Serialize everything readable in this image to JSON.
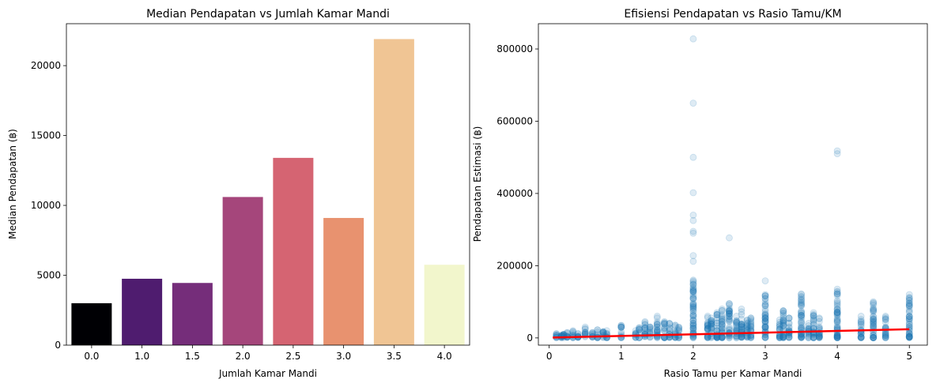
{
  "chart_data": [
    {
      "type": "bar",
      "title": "Median Pendapatan vs Jumlah Kamar Mandi",
      "xlabel": "Jumlah Kamar Mandi",
      "ylabel": "Median Pendapatan (฿)",
      "categories": [
        "0.0",
        "1.0",
        "1.5",
        "2.0",
        "2.5",
        "3.0",
        "3.5",
        "4.0"
      ],
      "values": [
        3000,
        4750,
        4450,
        10600,
        13400,
        9100,
        21900,
        5750
      ],
      "colors": [
        "#000004",
        "#4f1c6f",
        "#752d7a",
        "#a5467b",
        "#d56472",
        "#e8926f",
        "#f0c594",
        "#f2f6cc"
      ],
      "ylim": [
        0,
        23000
      ],
      "yticks": [
        0,
        5000,
        10000,
        15000,
        20000
      ],
      "grid": false
    },
    {
      "type": "scatter",
      "title": "Efisiensi Pendapatan vs Rasio Tamu/KM",
      "xlabel": "Rasio Tamu per Kamar Mandi",
      "ylabel": "Pendapatan Estimasi (฿)",
      "xlim": [
        -0.15,
        5.25
      ],
      "ylim": [
        -20000,
        870000
      ],
      "xticks": [
        0,
        1,
        2,
        3,
        4,
        5
      ],
      "yticks": [
        0,
        200000,
        400000,
        600000,
        800000
      ],
      "point_color": "#1f77b4",
      "point_alpha": 0.15,
      "columns": [
        {
          "x": 0.1,
          "max": 12000
        },
        {
          "x": 0.17,
          "max": 8000
        },
        {
          "x": 0.2,
          "max": 10000
        },
        {
          "x": 0.25,
          "max": 15000
        },
        {
          "x": 0.33,
          "max": 20000
        },
        {
          "x": 0.4,
          "max": 12000
        },
        {
          "x": 0.5,
          "max": 30000
        },
        {
          "x": 0.6,
          "max": 15000
        },
        {
          "x": 0.67,
          "max": 22000
        },
        {
          "x": 0.75,
          "max": 18000
        },
        {
          "x": 0.8,
          "max": 20000
        },
        {
          "x": 1.0,
          "max": 35000
        },
        {
          "x": 1.2,
          "max": 20000
        },
        {
          "x": 1.25,
          "max": 28000
        },
        {
          "x": 1.33,
          "max": 45000
        },
        {
          "x": 1.4,
          "max": 30000
        },
        {
          "x": 1.5,
          "max": 60000
        },
        {
          "x": 1.6,
          "max": 45000
        },
        {
          "x": 1.67,
          "max": 40000
        },
        {
          "x": 1.75,
          "max": 35000
        },
        {
          "x": 1.8,
          "max": 30000
        },
        {
          "x": 2.0,
          "max": 160000
        },
        {
          "x": 2.2,
          "max": 60000
        },
        {
          "x": 2.25,
          "max": 55000
        },
        {
          "x": 2.33,
          "max": 70000
        },
        {
          "x": 2.4,
          "max": 80000
        },
        {
          "x": 2.5,
          "max": 95000
        },
        {
          "x": 2.6,
          "max": 60000
        },
        {
          "x": 2.67,
          "max": 80000
        },
        {
          "x": 2.75,
          "max": 50000
        },
        {
          "x": 2.8,
          "max": 55000
        },
        {
          "x": 3.0,
          "max": 120000
        },
        {
          "x": 3.2,
          "max": 50000
        },
        {
          "x": 3.25,
          "max": 75000
        },
        {
          "x": 3.33,
          "max": 55000
        },
        {
          "x": 3.5,
          "max": 120000
        },
        {
          "x": 3.6,
          "max": 40000
        },
        {
          "x": 3.67,
          "max": 70000
        },
        {
          "x": 3.75,
          "max": 55000
        },
        {
          "x": 4.0,
          "max": 135000
        },
        {
          "x": 4.33,
          "max": 60000
        },
        {
          "x": 4.5,
          "max": 100000
        },
        {
          "x": 4.67,
          "max": 60000
        },
        {
          "x": 5.0,
          "max": 120000
        }
      ],
      "outliers": [
        [
          2.0,
          828000
        ],
        [
          2.0,
          650000
        ],
        [
          2.0,
          500000
        ],
        [
          2.0,
          402000
        ],
        [
          2.0,
          340000
        ],
        [
          2.0,
          325000
        ],
        [
          2.0,
          295000
        ],
        [
          2.0,
          290000
        ],
        [
          2.0,
          228000
        ],
        [
          2.0,
          212000
        ],
        [
          2.5,
          277000
        ],
        [
          4.0,
          518000
        ],
        [
          4.0,
          510000
        ],
        [
          3.0,
          158000
        ],
        [
          3.5,
          122000
        ]
      ],
      "trend_line": {
        "x": [
          0.05,
          5.0
        ],
        "y": [
          1000,
          24000
        ],
        "color": "#ff0000"
      },
      "grid": false
    }
  ]
}
